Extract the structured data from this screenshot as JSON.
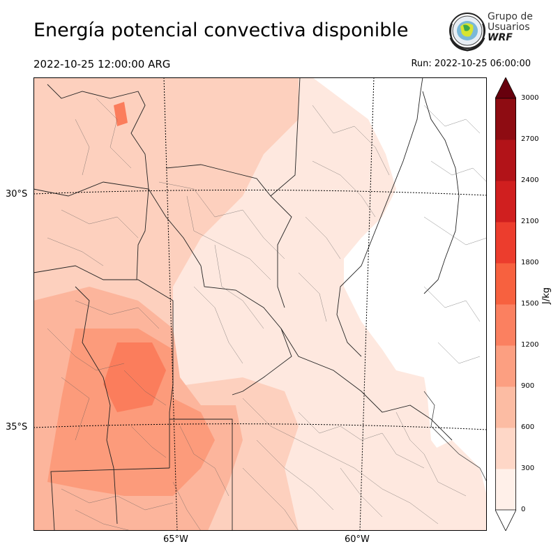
{
  "header": {
    "title": "Energía potencial convectiva disponible",
    "valid_time": "2022-10-25 12:00:00 ARG",
    "run_time": "Run: 2022-10-25 06:00:00"
  },
  "logo": {
    "line1": "Grupo de",
    "line2": "Usuarios",
    "line3": "WRF"
  },
  "map": {
    "variable": "CAPE",
    "parallels": [
      "30°S",
      "35°S"
    ],
    "meridians": [
      "65°W",
      "60°W"
    ],
    "field_colors": {
      "0-300": "#fee8df",
      "300-600": "#fdd0be",
      "600-900": "#fcb59c",
      "900-1200": "#fc9b7b",
      "1200-1500": "#fb7d5c"
    }
  },
  "colorbar": {
    "unit": "J/kg",
    "ticks": [
      "0",
      "300",
      "600",
      "900",
      "1200",
      "1500",
      "1800",
      "2100",
      "2400",
      "2700",
      "3000"
    ],
    "colors": [
      "#fff0e9",
      "#fed7c7",
      "#fcbca3",
      "#fc9f81",
      "#fb8060",
      "#f7613f",
      "#ec3d2d",
      "#d01f1f",
      "#b21318",
      "#8e0c12"
    ],
    "under_color": "#ffffff",
    "over_color": "#67000d"
  }
}
